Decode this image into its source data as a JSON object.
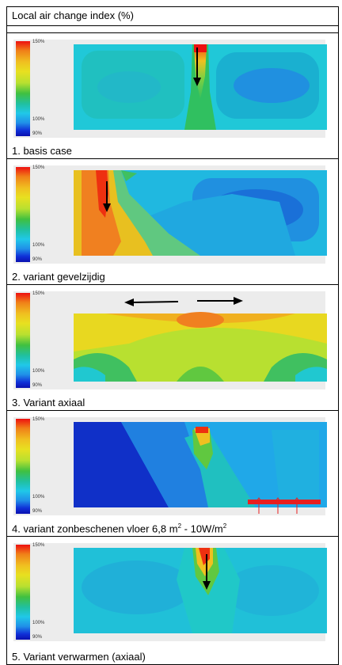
{
  "header": {
    "title": "Local air change index (%)"
  },
  "legend": {
    "top": "150%",
    "mid": "100%",
    "bottom": "90%"
  },
  "cases": [
    {
      "caption": "1. basis case"
    },
    {
      "caption": "2. variant gevelzijdig"
    },
    {
      "caption": "3. Variant axiaal"
    },
    {
      "caption_main": "4. variant zonbeschenen vloer 6,8 m",
      "sup1": "2",
      "mid": " - 10W/m",
      "sup2": "2"
    },
    {
      "caption": "5. Variant verwarmen (axiaal)"
    }
  ],
  "colors": {
    "high": "#ee1010",
    "mid": "#40c040",
    "low": "#1030d8",
    "floor_heat": "#e82020"
  }
}
